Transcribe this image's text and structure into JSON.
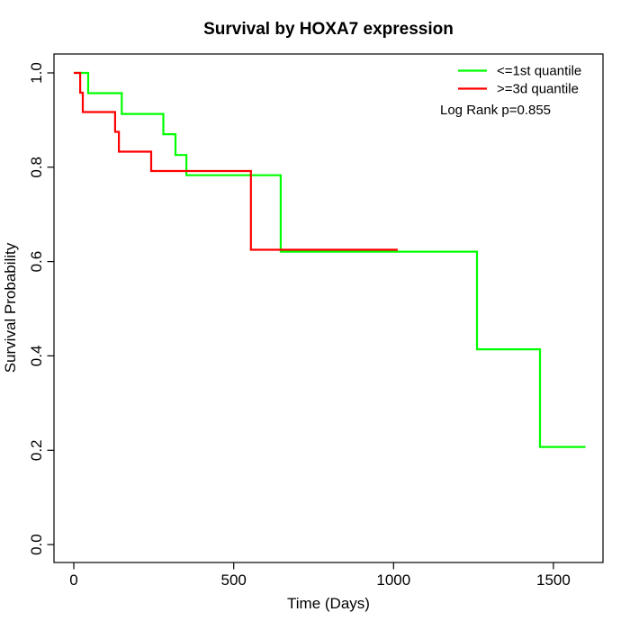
{
  "background": "#ffffff",
  "chart_data": {
    "type": "line",
    "subtype": "kaplan_meier_step",
    "title": "Survival by HOXA7 expression",
    "xlabel": "Time (Days)",
    "ylabel": "Survival Probability",
    "xticks": [
      0,
      500,
      1000,
      1500
    ],
    "yticks": [
      "0.0",
      "0.2",
      "0.4",
      "0.6",
      "0.8",
      "1.0"
    ],
    "xlim": [
      -62,
      1655
    ],
    "ylim": [
      -0.038,
      1.04
    ],
    "grid": false,
    "frame": true,
    "legend_position": "top-right",
    "annotation": "Log Rank p=0.855",
    "axis_color": "#000000",
    "series": [
      {
        "name": "<=1st quantile",
        "color": "#00ff00",
        "points": [
          [
            0,
            1.0
          ],
          [
            45,
            0.957
          ],
          [
            150,
            0.913
          ],
          [
            280,
            0.87
          ],
          [
            318,
            0.826
          ],
          [
            352,
            0.783
          ],
          [
            647,
            0.621
          ],
          [
            1261,
            0.414
          ],
          [
            1458,
            0.207
          ]
        ],
        "end_time": 1600
      },
      {
        "name": ">=3d quantile",
        "color": "#ff0000",
        "points": [
          [
            0,
            1.0
          ],
          [
            20,
            0.958
          ],
          [
            28,
            0.917
          ],
          [
            129,
            0.875
          ],
          [
            141,
            0.833
          ],
          [
            242,
            0.792
          ],
          [
            554,
            0.625
          ]
        ],
        "end_time": 1013
      }
    ]
  }
}
